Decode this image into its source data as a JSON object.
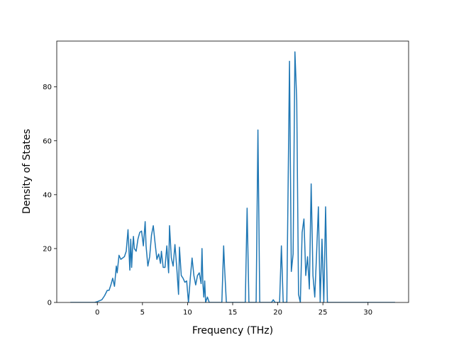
{
  "chart_data": {
    "type": "line",
    "title": "",
    "xlabel": "Frequency (THz)",
    "ylabel": "Density of States",
    "xlim": [
      -4.5,
      34.5
    ],
    "ylim": [
      0,
      97
    ],
    "xticks": [
      0,
      5,
      10,
      15,
      20,
      25,
      30
    ],
    "yticks": [
      0,
      20,
      40,
      60,
      80
    ],
    "grid": false,
    "legend": "none",
    "line_color": "#1f77b4",
    "series": [
      {
        "x": [
          -3.0,
          -0.3,
          0.0,
          0.5,
          0.8,
          1.1,
          1.3,
          1.5,
          1.7,
          1.9,
          2.1,
          2.2,
          2.4,
          2.6,
          2.8,
          3.0,
          3.2,
          3.4,
          3.6,
          3.7,
          3.8,
          3.9,
          4.0,
          4.1,
          4.3,
          4.5,
          4.7,
          4.9,
          5.1,
          5.3,
          5.4,
          5.6,
          5.8,
          6.0,
          6.2,
          6.4,
          6.6,
          6.8,
          7.0,
          7.1,
          7.3,
          7.5,
          7.7,
          7.9,
          8.0,
          8.2,
          8.4,
          8.6,
          8.8,
          9.0,
          9.1,
          9.3,
          9.5,
          9.7,
          9.9,
          10.1,
          10.3,
          10.5,
          10.7,
          10.9,
          11.1,
          11.3,
          11.5,
          11.6,
          11.7,
          11.8,
          11.9,
          12.0,
          12.2,
          12.4,
          12.6,
          13.8,
          14.0,
          14.1,
          14.3,
          16.4,
          16.6,
          16.8,
          17.6,
          17.8,
          18.0,
          19.3,
          19.5,
          19.7,
          20.2,
          20.4,
          20.6,
          21.0,
          21.3,
          21.5,
          21.7,
          21.9,
          22.1,
          22.3,
          22.5,
          22.7,
          22.9,
          23.1,
          23.3,
          23.5,
          23.7,
          23.9,
          24.1,
          24.3,
          24.5,
          24.7,
          24.9,
          25.1,
          25.3,
          25.5,
          25.7,
          33.0
        ],
        "y": [
          0,
          0,
          0.3,
          1.0,
          2.5,
          4.5,
          4.5,
          6.5,
          9.0,
          6.0,
          13.5,
          11.0,
          17.5,
          16.0,
          16.5,
          17.0,
          19.0,
          27.0,
          12.0,
          23.5,
          13.0,
          20.0,
          24.5,
          20.0,
          19.0,
          23.5,
          26.0,
          26.5,
          21.0,
          30.0,
          21.0,
          13.5,
          17.0,
          25.0,
          28.5,
          22.0,
          16.0,
          18.0,
          14.5,
          19.0,
          13.0,
          13.0,
          21.0,
          11.0,
          28.5,
          16.5,
          13.5,
          21.5,
          13.0,
          3.0,
          20.5,
          10.0,
          9.0,
          7.5,
          8.0,
          0,
          9.0,
          16.5,
          10.0,
          6.5,
          10.0,
          11.0,
          7.0,
          20.0,
          7.0,
          2.0,
          8.0,
          0,
          2.0,
          0,
          0,
          0,
          21.0,
          13.0,
          0,
          0,
          35.0,
          0,
          0,
          64.0,
          0,
          0,
          1.0,
          0,
          0,
          21.0,
          0,
          0,
          89.5,
          11.5,
          18.0,
          93.0,
          75.0,
          3.0,
          0,
          26.0,
          31.0,
          10.0,
          17.0,
          5.0,
          44.0,
          10.0,
          2.0,
          18.0,
          35.5,
          0,
          23.5,
          0,
          35.5,
          0,
          0,
          0
        ]
      }
    ]
  }
}
